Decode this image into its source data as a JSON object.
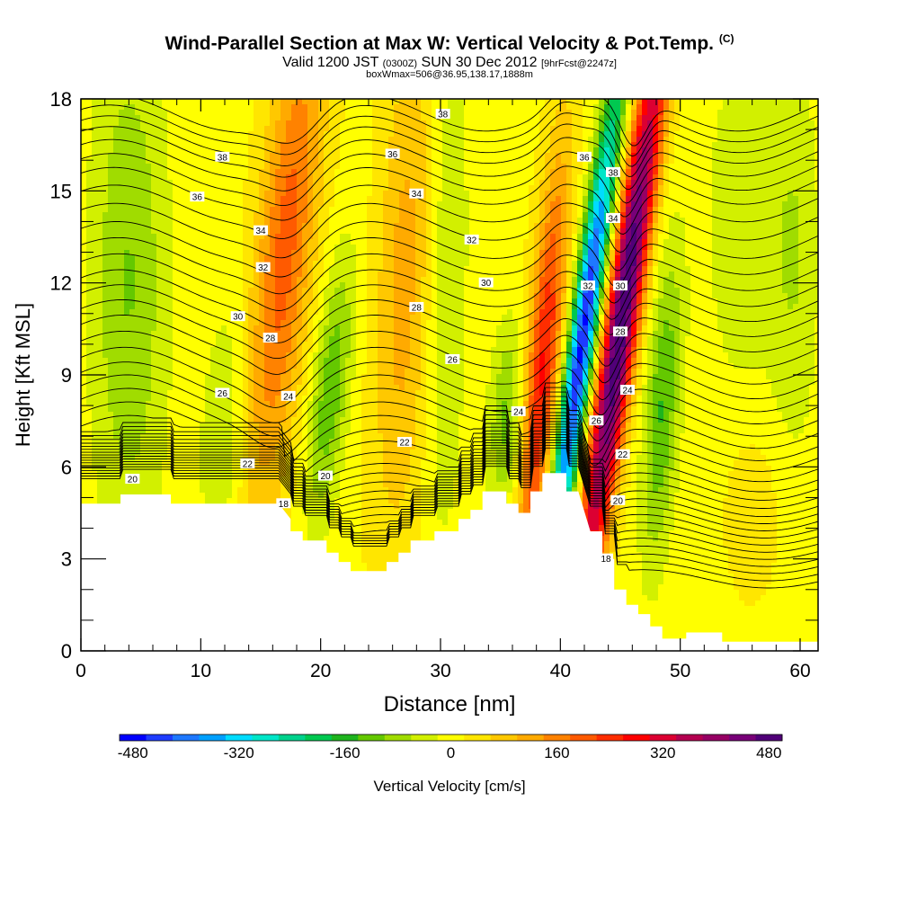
{
  "header": {
    "title": "Wind-Parallel Section at Max W: Vertical Velocity & Pot.Temp.",
    "copyright": "(C)",
    "valid_prefix": "Valid 1200 JST",
    "utc": "(0300Z)",
    "valid_date": "SUN 30 Dec 2012",
    "forecast": "[9hrFcst@2247z]",
    "box_info": "boxWmax=506@36.95,138.17,1888m"
  },
  "chart_data": {
    "type": "heatmap",
    "xlabel": "Distance [nm]",
    "ylabel": "Height [Kft MSL]",
    "xlim": [
      0,
      61.5
    ],
    "ylim": [
      0,
      18
    ],
    "x_ticks": [
      0,
      10,
      20,
      30,
      40,
      50,
      60
    ],
    "y_ticks": [
      0,
      3,
      6,
      9,
      12,
      15,
      18
    ],
    "colorbar": {
      "label": "Vertical Velocity [cm/s]",
      "min": -500,
      "max": 500,
      "step": 40,
      "tick_values": [
        -480,
        -320,
        -160,
        0,
        160,
        320,
        480
      ],
      "tick_labels": [
        "-480",
        "-320",
        "-160",
        "0",
        "160",
        "320",
        "480"
      ],
      "colors": [
        "#0000ff",
        "#1e3cff",
        "#1e78ff",
        "#00a0ff",
        "#00dcff",
        "#00e6c8",
        "#00d28c",
        "#00c850",
        "#1eb41e",
        "#64c800",
        "#a0dc00",
        "#d2f000",
        "#ffff00",
        "#ffe600",
        "#ffc800",
        "#ffaa00",
        "#ff8200",
        "#ff5a00",
        "#ff2d00",
        "#ff0000",
        "#dc0032",
        "#b40050",
        "#960064",
        "#780078",
        "#500078"
      ]
    },
    "terrain": [
      [
        0,
        4.8
      ],
      [
        3.3,
        4.8
      ],
      [
        3.3,
        5.1
      ],
      [
        7.5,
        5.1
      ],
      [
        7.5,
        4.8
      ],
      [
        16.5,
        4.8
      ],
      [
        17.5,
        4.3
      ],
      [
        17.5,
        3.9
      ],
      [
        18.5,
        3.9
      ],
      [
        18.5,
        3.6
      ],
      [
        20.5,
        3.6
      ],
      [
        20.5,
        3.2
      ],
      [
        21.5,
        3.2
      ],
      [
        21.5,
        2.9
      ],
      [
        22.5,
        2.9
      ],
      [
        22.5,
        2.6
      ],
      [
        25.5,
        2.6
      ],
      [
        25.5,
        2.9
      ],
      [
        26.5,
        2.9
      ],
      [
        26.5,
        3.2
      ],
      [
        27.5,
        3.2
      ],
      [
        27.5,
        3.6
      ],
      [
        29.5,
        3.6
      ],
      [
        29.5,
        3.9
      ],
      [
        31.5,
        3.9
      ],
      [
        31.5,
        4.3
      ],
      [
        32.5,
        4.3
      ],
      [
        32.5,
        4.6
      ],
      [
        33.5,
        4.6
      ],
      [
        33.5,
        5.2
      ],
      [
        35.5,
        5.2
      ],
      [
        35.5,
        4.8
      ],
      [
        36.5,
        4.8
      ],
      [
        36.5,
        4.5
      ],
      [
        37.5,
        4.5
      ],
      [
        37.5,
        5.2
      ],
      [
        38.5,
        5.2
      ],
      [
        38.5,
        5.8
      ],
      [
        40.5,
        5.8
      ],
      [
        40.5,
        5.2
      ],
      [
        41.5,
        5.2
      ],
      [
        42.5,
        3.9
      ],
      [
        43.5,
        3.9
      ],
      [
        43.5,
        3.0
      ],
      [
        44.5,
        3.0
      ],
      [
        44.5,
        2.0
      ],
      [
        45.5,
        2.0
      ],
      [
        45.5,
        1.5
      ],
      [
        46.5,
        1.5
      ],
      [
        46.5,
        1.2
      ],
      [
        47.5,
        1.2
      ],
      [
        47.5,
        0.8
      ],
      [
        48.5,
        0.8
      ],
      [
        48.5,
        0.4
      ],
      [
        50.5,
        0.4
      ],
      [
        50.5,
        0.6
      ],
      [
        53.5,
        0.6
      ],
      [
        53.5,
        0.3
      ],
      [
        61.5,
        0.3
      ]
    ],
    "w_features": [
      {
        "x": 4,
        "y": 12,
        "sx": 2.2,
        "sy": 6,
        "tilt": 0.0,
        "w": -110
      },
      {
        "x": 12,
        "y": 7,
        "sx": 1.4,
        "sy": 3,
        "tilt": 0.1,
        "w": -70
      },
      {
        "x": 17,
        "y": 13,
        "sx": 1.7,
        "sy": 6,
        "tilt": 0.25,
        "w": 190
      },
      {
        "x": 20.8,
        "y": 8.5,
        "sx": 1.1,
        "sy": 3,
        "tilt": 0.25,
        "w": -140
      },
      {
        "x": 27,
        "y": 12,
        "sx": 1.7,
        "sy": 6,
        "tilt": 0.1,
        "w": 110
      },
      {
        "x": 30.5,
        "y": 12,
        "sx": 1.2,
        "sy": 6,
        "tilt": 0.05,
        "w": -75
      },
      {
        "x": 35.5,
        "y": 7.5,
        "sx": 1.0,
        "sy": 2.2,
        "tilt": 0.1,
        "w": -120
      },
      {
        "x": 38.5,
        "y": 9,
        "sx": 1.0,
        "sy": 5,
        "tilt": 0.2,
        "w": 260
      },
      {
        "x": 41.8,
        "y": 10,
        "sx": 0.8,
        "sy": 6,
        "tilt": 0.35,
        "w": -480
      },
      {
        "x": 45.2,
        "y": 11,
        "sx": 1.0,
        "sy": 7,
        "tilt": 0.35,
        "w": 500
      },
      {
        "x": 48.5,
        "y": 8,
        "sx": 1.0,
        "sy": 3.5,
        "tilt": 0.15,
        "w": -150
      },
      {
        "x": 55,
        "y": 14,
        "sx": 2.0,
        "sy": 4,
        "tilt": 0.0,
        "w": -60
      },
      {
        "x": 59.5,
        "y": 13,
        "sx": 1.5,
        "sy": 4.5,
        "tilt": 0.0,
        "w": -70
      },
      {
        "x": 56,
        "y": 4.5,
        "sx": 1.5,
        "sy": 1.8,
        "tilt": 0.0,
        "w": 50
      }
    ],
    "theta_contours": {
      "base_levels": [
        [
          18,
          4.8
        ],
        [
          20,
          5.6
        ],
        [
          22,
          6.6
        ],
        [
          24,
          7.8
        ],
        [
          26,
          9.0
        ],
        [
          28,
          10.5
        ],
        [
          30,
          11.9
        ],
        [
          32,
          13.4
        ],
        [
          34,
          15.1
        ],
        [
          36,
          16.4
        ],
        [
          38,
          17.4
        ]
      ],
      "labeled_levels": [
        "18",
        "20",
        "22",
        "24",
        "26",
        "28",
        "30",
        "32",
        "34",
        "36",
        "38"
      ]
    },
    "contour_labels": [
      {
        "x": 4.3,
        "y": 5.6,
        "text": "20"
      },
      {
        "x": 16.9,
        "y": 4.8,
        "text": "18"
      },
      {
        "x": 13.9,
        "y": 6.1,
        "text": "22"
      },
      {
        "x": 20.4,
        "y": 5.7,
        "text": "20"
      },
      {
        "x": 11.8,
        "y": 8.4,
        "text": "26"
      },
      {
        "x": 17.3,
        "y": 8.3,
        "text": "24"
      },
      {
        "x": 27.0,
        "y": 6.8,
        "text": "22"
      },
      {
        "x": 36.5,
        "y": 7.8,
        "text": "24"
      },
      {
        "x": 13.1,
        "y": 10.9,
        "text": "30"
      },
      {
        "x": 15.8,
        "y": 10.2,
        "text": "28"
      },
      {
        "x": 28.0,
        "y": 11.2,
        "text": "28"
      },
      {
        "x": 31.0,
        "y": 9.5,
        "text": "26"
      },
      {
        "x": 15.2,
        "y": 12.5,
        "text": "32"
      },
      {
        "x": 15.0,
        "y": 13.7,
        "text": "34"
      },
      {
        "x": 32.6,
        "y": 13.4,
        "text": "32"
      },
      {
        "x": 33.8,
        "y": 12.0,
        "text": "30"
      },
      {
        "x": 9.7,
        "y": 14.8,
        "text": "36"
      },
      {
        "x": 11.8,
        "y": 16.1,
        "text": "38"
      },
      {
        "x": 26.0,
        "y": 16.2,
        "text": "36"
      },
      {
        "x": 28.0,
        "y": 14.9,
        "text": "34"
      },
      {
        "x": 30.2,
        "y": 17.5,
        "text": "38"
      },
      {
        "x": 42.0,
        "y": 16.1,
        "text": "36"
      },
      {
        "x": 44.4,
        "y": 15.6,
        "text": "38"
      },
      {
        "x": 44.4,
        "y": 14.1,
        "text": "34"
      },
      {
        "x": 42.3,
        "y": 11.9,
        "text": "32"
      },
      {
        "x": 45.0,
        "y": 11.9,
        "text": "30"
      },
      {
        "x": 45.0,
        "y": 10.4,
        "text": "28"
      },
      {
        "x": 43.0,
        "y": 7.5,
        "text": "26"
      },
      {
        "x": 45.6,
        "y": 8.5,
        "text": "24"
      },
      {
        "x": 45.2,
        "y": 6.4,
        "text": "22"
      },
      {
        "x": 44.8,
        "y": 4.9,
        "text": "20"
      },
      {
        "x": 43.8,
        "y": 3.0,
        "text": "18"
      }
    ]
  }
}
